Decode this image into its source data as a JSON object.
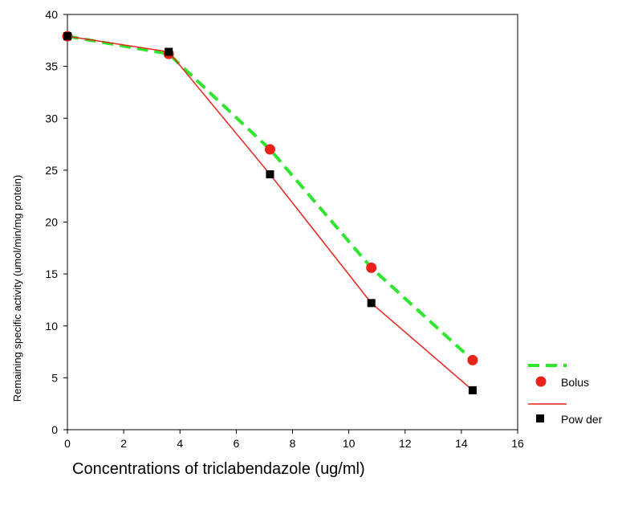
{
  "chart_data": {
    "type": "line",
    "title": "",
    "xlabel": "Concentrations of triclabendazole (ug/ml)",
    "ylabel": "Remaining specific activity (umol/min/mg protein)",
    "xlim": [
      0,
      16
    ],
    "ylim": [
      0,
      40
    ],
    "xticks": [
      0,
      2,
      4,
      6,
      8,
      10,
      12,
      14,
      16
    ],
    "yticks": [
      0,
      5,
      10,
      15,
      20,
      25,
      30,
      35,
      40
    ],
    "grid": false,
    "legend_position": "right",
    "series": [
      {
        "name": "Bolus",
        "color": "#2ee62e",
        "marker_color": "#e8231c",
        "line": "dashed",
        "marker": "circle",
        "x": [
          0,
          3.6,
          7.2,
          10.8,
          14.4
        ],
        "y": [
          37.9,
          36.2,
          27.0,
          15.6,
          6.7
        ]
      },
      {
        "name": "Pow der",
        "color": "#e8231c",
        "marker_color": "#000000",
        "line": "solid",
        "marker": "square",
        "x": [
          0,
          3.6,
          7.2,
          10.8,
          14.4
        ],
        "y": [
          37.9,
          36.4,
          24.6,
          12.2,
          3.8
        ]
      }
    ]
  }
}
